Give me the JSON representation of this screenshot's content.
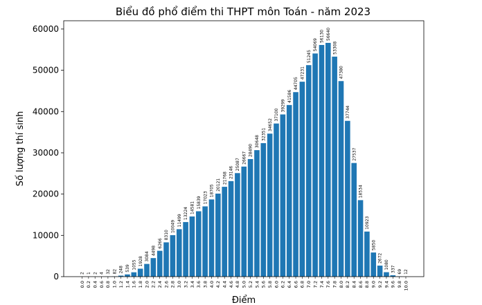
{
  "chart_data": {
    "type": "bar",
    "title": "Biểu đồ phổ điểm thi THPT môn Toán - năm 2023",
    "xlabel": "Điểm",
    "ylabel": "Số lượng thí sinh",
    "ylim": [
      0,
      62000
    ],
    "yticks": [
      "0",
      "10000",
      "20000",
      "30000",
      "40000",
      "50000",
      "60000"
    ],
    "bar_color": "#1f77b4",
    "grid": false,
    "categories": [
      "0.0",
      "0.2",
      "0.4",
      "0.6",
      "0.8",
      "1.0",
      "1.2",
      "1.4",
      "1.6",
      "1.8",
      "2.0",
      "2.2",
      "2.4",
      "2.6",
      "2.8",
      "3.0",
      "3.2",
      "3.4",
      "3.6",
      "3.8",
      "4.0",
      "4.2",
      "4.4",
      "4.6",
      "4.8",
      "5.0",
      "5.2",
      "5.4",
      "5.6",
      "5.8",
      "6.0",
      "6.2",
      "6.4",
      "6.6",
      "6.8",
      "7.0",
      "7.2",
      "7.4",
      "7.6",
      "7.8",
      "8.0",
      "8.2",
      "8.4",
      "8.6",
      "8.8",
      "9.0",
      "9.2",
      "9.4",
      "9.6",
      "9.8",
      "10.0"
    ],
    "values": [
      2,
      1,
      2,
      4,
      32,
      82,
      248,
      539,
      1055,
      1928,
      3084,
      4498,
      6266,
      8310,
      10049,
      11499,
      13224,
      14581,
      15839,
      17023,
      18705,
      20121,
      21768,
      23146,
      25087,
      26667,
      28490,
      30648,
      32351,
      34652,
      37100,
      39299,
      41586,
      44705,
      47231,
      51245,
      54069,
      56130,
      56640,
      53308,
      47380,
      37744,
      27537,
      18534,
      10923,
      5850,
      2672,
      1080,
      337,
      69,
      12
    ],
    "data_labels": [
      "2",
      "1",
      "2",
      "4",
      "32",
      "82",
      "248",
      "539",
      "1055",
      "1928",
      "3084",
      "4498",
      "6266",
      "8310",
      "10049",
      "11499",
      "13224",
      "14581",
      "15839",
      "17023",
      "18705",
      "20121",
      "21768",
      "23146",
      "25087",
      "26667",
      "28490",
      "30648",
      "32351",
      "34652",
      "37100",
      "39299",
      "41586",
      "44705",
      "47231",
      "51245",
      "54069",
      "56130",
      "56640",
      "53308",
      "47380",
      "37744",
      "27537",
      "18534",
      "10923",
      "5850",
      "2672",
      "1080",
      "337",
      "69",
      "12"
    ]
  }
}
